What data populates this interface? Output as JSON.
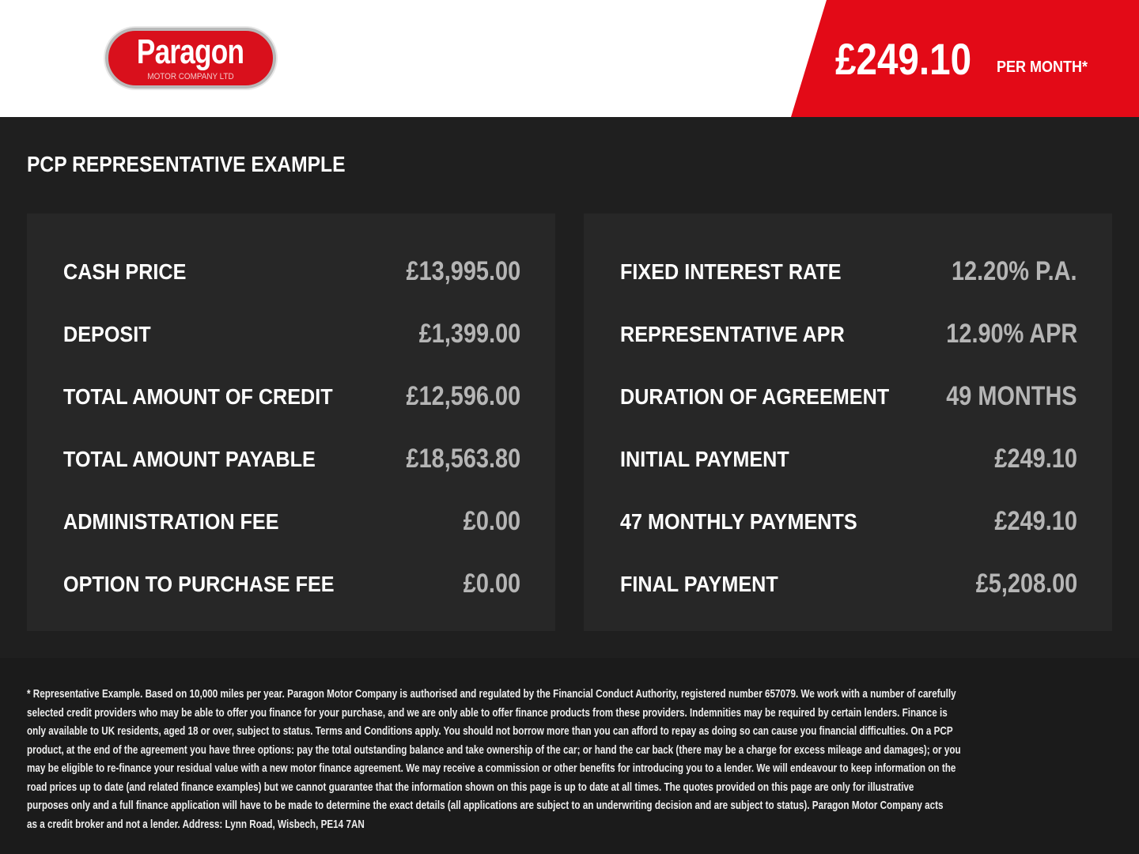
{
  "header": {
    "brand": "Paragon",
    "brand_sub": "MOTOR COMPANY LTD",
    "monthly_price": "£249.10",
    "per_month": "PER MONTH*",
    "accent": "#e30a17"
  },
  "title": "PCP REPRESENTATIVE EXAMPLE",
  "left": [
    {
      "label": "CASH PRICE",
      "value": "£13,995.00"
    },
    {
      "label": "DEPOSIT",
      "value": "£1,399.00"
    },
    {
      "label": "TOTAL AMOUNT OF CREDIT",
      "value": "£12,596.00"
    },
    {
      "label": "TOTAL AMOUNT PAYABLE",
      "value": "£18,563.80"
    },
    {
      "label": "ADMINISTRATION FEE",
      "value": "£0.00"
    },
    {
      "label": "OPTION TO PURCHASE FEE",
      "value": "£0.00"
    }
  ],
  "right": [
    {
      "label": "FIXED INTEREST RATE",
      "value": "12.20% P.A."
    },
    {
      "label": "REPRESENTATIVE APR",
      "value": "12.90% APR"
    },
    {
      "label": "DURATION OF AGREEMENT",
      "value": "49 MONTHS"
    },
    {
      "label": "INITIAL PAYMENT",
      "value": "£249.10"
    },
    {
      "label": "47 MONTHLY PAYMENTS",
      "value": "£249.10"
    },
    {
      "label": "FINAL PAYMENT",
      "value": "£5,208.00"
    }
  ],
  "disclaimer": [
    "* Representative Example. Based on 10,000 miles per year. Paragon Motor Company is authorised and regulated by the Financial Conduct Authority, registered number 657079. We work with a number of carefully",
    "selected credit providers who may be able to offer you finance for your purchase, and we are only able to offer finance products from these providers. Indemnities may be required by certain lenders. Finance is",
    "only available to UK residents, aged 18 or over, subject to status. Terms and Conditions apply. You should not borrow more than you can afford to repay as doing so can cause you financial difficulties. On a PCP",
    "product, at the end of the agreement you have three options: pay the total outstanding balance and take ownership of the car; or hand the car back (there may be a charge for excess mileage and damages); or you",
    "may be eligible to re-finance your residual value with a new motor finance agreement. We may receive a commission or other benefits for introducing you to a lender. We will endeavour to keep information on the",
    "road prices up to date (and related finance examples) but we cannot guarantee that the information shown on this page is up to date at all times. The quotes provided on this page are only for illustrative",
    "purposes only and a full finance application will have to be made to determine the exact details (all applications are subject to an underwriting decision and are subject to status). Paragon Motor Company acts",
    "as a credit broker and not a lender. Address: Lynn Road, Wisbech, PE14 7AN"
  ]
}
